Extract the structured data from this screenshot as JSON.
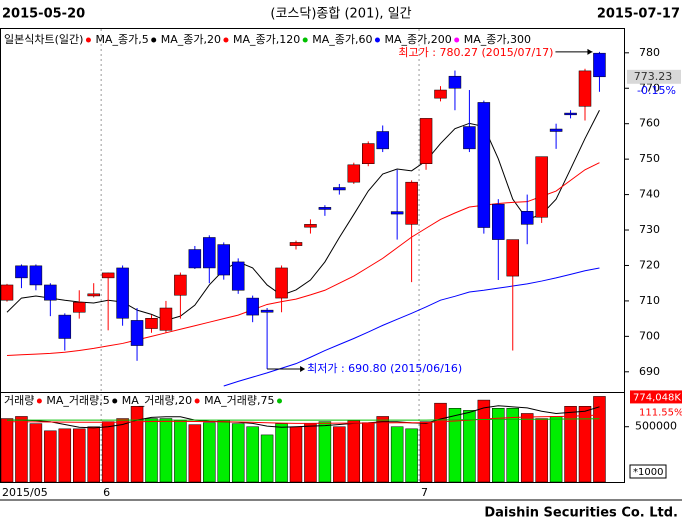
{
  "header": {
    "start_date": "2015-05-20",
    "title": "(코스닥)종합 (201), 일간",
    "end_date": "2015-07-17"
  },
  "chart_data": [
    {
      "type": "candlestick",
      "legend_title": "일본식차트(일간)",
      "legend_title_color": "#ff0000",
      "categories": [
        "2015/05",
        null,
        null,
        null,
        null,
        null,
        null,
        "6",
        null,
        null,
        null,
        null,
        null,
        null,
        null,
        null,
        null,
        null,
        null,
        null,
        null,
        null,
        null,
        null,
        null,
        null,
        null,
        null,
        null,
        "7",
        null,
        null,
        null,
        null,
        null,
        null,
        null,
        null,
        null,
        null,
        null,
        null
      ],
      "open": [
        710.2,
        719.9,
        719.9,
        714.5,
        706,
        706.8,
        711.4,
        716.5,
        719.3,
        704.5,
        702.2,
        701.7,
        711.6,
        724.5,
        727.9,
        725.9,
        721,
        710.8,
        707.4,
        710.8,
        725.6,
        730.8,
        736.4,
        742,
        743.5,
        748.7,
        757.8,
        735.2,
        731.6,
        748.7,
        767.2,
        773.4,
        759.2,
        766,
        737.3,
        717,
        735.3,
        733.6,
        758.5,
        763,
        764.9,
        779.9
      ],
      "high": [
        714.8,
        720.3,
        720.3,
        715,
        706.5,
        713,
        715,
        718,
        720,
        708,
        706,
        710,
        718,
        725.5,
        728.5,
        726.5,
        722,
        711.5,
        708,
        720,
        727,
        733,
        737,
        743,
        749,
        755,
        759.5,
        747,
        744,
        761.5,
        770.6,
        775,
        769.5,
        766.5,
        738.7,
        727.3,
        740,
        750.7,
        760,
        763.8,
        775.5,
        780.27
      ],
      "low": [
        709.8,
        713.6,
        713,
        705.7,
        696,
        705,
        711,
        701.7,
        703,
        693.1,
        701,
        701,
        705,
        719,
        715,
        716,
        712,
        704,
        690.8,
        706.8,
        724.5,
        729,
        734,
        740,
        743,
        748,
        752,
        727.3,
        715.3,
        747,
        766.3,
        763.8,
        752,
        729,
        715.9,
        696,
        726,
        732,
        752.9,
        761.5,
        760.9,
        769
      ],
      "close": [
        714.5,
        716.5,
        714.5,
        710.2,
        699.4,
        709.6,
        712,
        717.9,
        705.1,
        697.4,
        705.1,
        708,
        717.3,
        719.3,
        719.3,
        717.3,
        713,
        706,
        706.8,
        719.3,
        726.5,
        731.6,
        735.8,
        741.3,
        748.4,
        754.4,
        752.9,
        734.5,
        743.5,
        761.5,
        769.5,
        770,
        752.9,
        730.7,
        727.3,
        727.3,
        731.6,
        750.7,
        757.8,
        762.5,
        774.9,
        773.23
      ],
      "up_color": "#ff0000",
      "down_color": "#0000ff",
      "series": [
        {
          "name": "MA_종가,5",
          "color": "#000000",
          "values": [
            706.8,
            710.8,
            711.4,
            710.8,
            710.2,
            709.7,
            709.4,
            710.2,
            709.7,
            707.4,
            706.2,
            704.5,
            705.7,
            708.8,
            714.5,
            718.8,
            721.0,
            719.3,
            714.5,
            711.6,
            713.1,
            715.9,
            721.0,
            727.9,
            734.4,
            741.0,
            745.8,
            747.2,
            746.7,
            749.5,
            754.4,
            758.6,
            760.1,
            759.2,
            750.1,
            738.7,
            733.0,
            734.4,
            738.7,
            747.2,
            755.8,
            763.8
          ]
        },
        {
          "name": "MA_종가,20",
          "color": "#ff0000",
          "values": [
            694.6,
            694.8,
            695,
            695.2,
            695.5,
            696,
            696.6,
            697.3,
            698,
            699,
            700,
            701,
            702,
            703,
            704,
            705,
            706,
            707.5,
            709,
            709.8,
            710.5,
            711.7,
            713,
            715,
            717,
            719.5,
            722,
            725,
            728,
            730.5,
            733,
            734.8,
            736.5,
            737,
            737.5,
            737.8,
            738,
            739.5,
            741,
            744,
            747,
            749
          ]
        },
        {
          "name": "MA_종가,120",
          "color": "#00c000"
        },
        {
          "name": "MA_종가,60",
          "color": "#0000ff",
          "values": [
            null,
            null,
            null,
            null,
            null,
            null,
            null,
            null,
            null,
            null,
            null,
            null,
            null,
            null,
            null,
            686,
            687.3,
            688.5,
            689.7,
            691,
            692.3,
            694.1,
            696,
            697.7,
            699.4,
            701.2,
            703.1,
            704.8,
            706.5,
            708.3,
            710.2,
            711.3,
            712.5,
            713,
            713.6,
            714.2,
            714.8,
            715.6,
            716.5,
            717.5,
            718.5,
            719.3
          ]
        },
        {
          "name": "MA_종가,200",
          "color": "#ff00ff"
        },
        {
          "name": "MA_종가,300"
        }
      ],
      "ylim": [
        684.3,
        787
      ],
      "yticks": [
        690,
        700,
        710,
        720,
        730,
        740,
        750,
        760,
        770,
        780
      ],
      "last_value": "773.23",
      "change": "-0.15%",
      "annotations": [
        {
          "text": "최고가 : 780.27 (2015/07/17)",
          "index": 41,
          "value": 780.27,
          "color": "#ff0000"
        },
        {
          "text": "최저가 : 690.80 (2015/06/16)",
          "index": 18,
          "value": 690.8,
          "color": "#0000ff"
        }
      ]
    },
    {
      "type": "bar",
      "legend_title": "거래량",
      "legend_title_color": "#ff0000",
      "values": [
        574000,
        593000,
        528000,
        463000,
        481000,
        481000,
        500000,
        546000,
        574000,
        685000,
        574000,
        574000,
        556000,
        519000,
        537000,
        556000,
        528000,
        500000,
        426000,
        528000,
        500000,
        528000,
        546000,
        500000,
        556000,
        537000,
        593000,
        500000,
        481000,
        546000,
        713000,
        667000,
        648000,
        741000,
        667000,
        667000,
        620000,
        574000,
        593000,
        685000,
        685000,
        774048
      ],
      "colors": [
        "#ff0000",
        "#ff0000",
        "#ff0000",
        "#ff0000",
        "#ff0000",
        "#ff0000",
        "#ff0000",
        "#ff0000",
        "#ff0000",
        "#ff0000",
        "#00ee00",
        "#00ee00",
        "#00ee00",
        "#ff0000",
        "#00ee00",
        "#00ee00",
        "#00ee00",
        "#00ee00",
        "#00ee00",
        "#00ee00",
        "#ff0000",
        "#ff0000",
        "#00ee00",
        "#ff0000",
        "#ff0000",
        "#ff0000",
        "#ff0000",
        "#00ee00",
        "#00ee00",
        "#ff0000",
        "#ff0000",
        "#00ee00",
        "#00ee00",
        "#ff0000",
        "#00ee00",
        "#00ee00",
        "#ff0000",
        "#ff0000",
        "#00ee00",
        "#ff0000",
        "#ff0000",
        "#ff0000"
      ],
      "series": [
        {
          "name": "MA_거래량,5",
          "color": "#000000",
          "values": [
            560000,
            560000,
            555000,
            545000,
            520000,
            495000,
            490000,
            500000,
            520000,
            560000,
            585000,
            590000,
            590000,
            560000,
            550000,
            545000,
            540000,
            530000,
            505000,
            495000,
            500000,
            505000,
            510000,
            520000,
            530000,
            535000,
            545000,
            545000,
            535000,
            530000,
            570000,
            600000,
            630000,
            670000,
            690000,
            680000,
            670000,
            640000,
            620000,
            630000,
            640000,
            680000
          ]
        },
        {
          "name": "MA_거래량,20",
          "color": "#ff0000",
          "values": [
            545000,
            545000,
            544000,
            543000,
            542000,
            541000,
            540000,
            540000,
            541000,
            545000,
            547000,
            548000,
            548000,
            547000,
            546000,
            545000,
            543000,
            540000,
            536000,
            533000,
            530000,
            530000,
            531000,
            532000,
            533000,
            534000,
            535000,
            536000,
            536000,
            537000,
            545000,
            552000,
            560000,
            570000,
            577000,
            583000,
            588000,
            590000,
            592000,
            595000,
            600000,
            606000
          ]
        },
        {
          "name": "MA_거래량,75",
          "color": "#00c000",
          "values": [
            560000,
            560000,
            560000,
            560000,
            560000,
            560000,
            560000,
            560000,
            560000,
            560000,
            560000,
            560000,
            560000,
            560000,
            560000,
            560000,
            560000,
            560000,
            560000,
            560000,
            560000,
            560000,
            560000,
            560000,
            560000,
            560000,
            560000,
            560000,
            560000,
            560000,
            562000,
            563000,
            564000,
            565000,
            566000,
            567000,
            568000,
            568000,
            569000,
            570000,
            571000,
            572000
          ]
        }
      ],
      "ylim": [
        0,
        805000
      ],
      "yticks": [
        500000
      ],
      "last_value": "774,048K",
      "change": "111.55%",
      "unit": "*1000"
    }
  ],
  "footer": "Daishin Securities Co. Ltd."
}
